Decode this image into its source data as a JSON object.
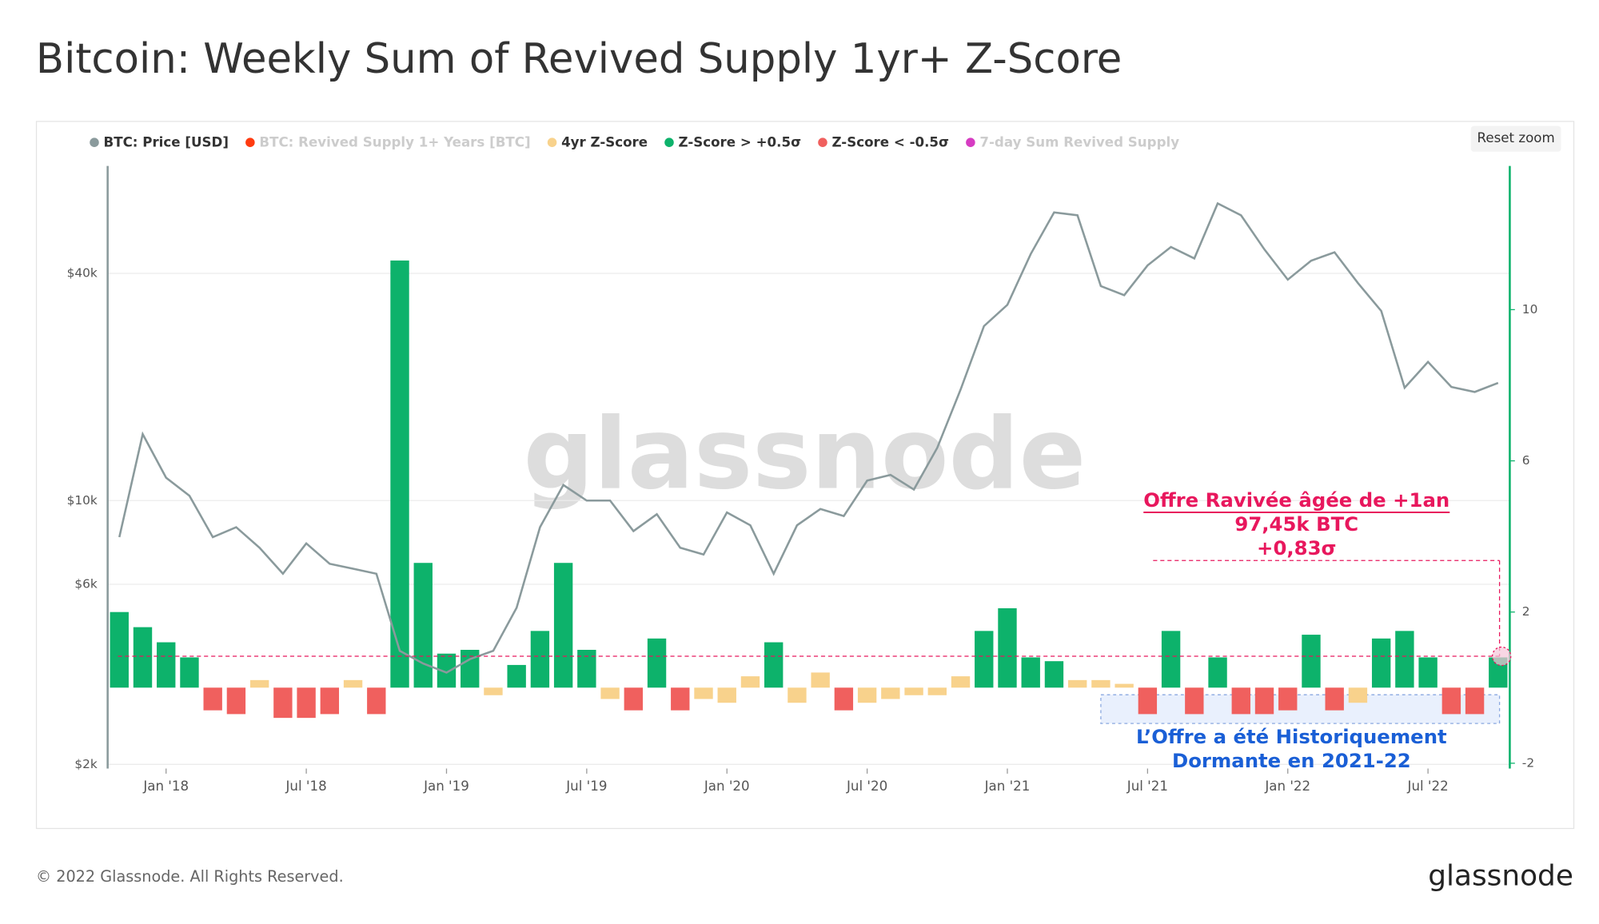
{
  "chart_data": {
    "type": "bar-line",
    "title": "Bitcoin: Weekly Sum of Revived Supply 1yr+ Z-Score",
    "watermark": "glassnode",
    "reset_button": "Reset zoom",
    "footer": "© 2022 Glassnode. All Rights Reserved.",
    "logo": "glassnode",
    "x": [
      "2017-11",
      "2017-12",
      "2018-01",
      "2018-02",
      "2018-03",
      "2018-04",
      "2018-05",
      "2018-06",
      "2018-07",
      "2018-08",
      "2018-09",
      "2018-10",
      "2018-11",
      "2018-12",
      "2019-01",
      "2019-02",
      "2019-03",
      "2019-04",
      "2019-05",
      "2019-06",
      "2019-07",
      "2019-08",
      "2019-09",
      "2019-10",
      "2019-11",
      "2019-12",
      "2020-01",
      "2020-02",
      "2020-03",
      "2020-04",
      "2020-05",
      "2020-06",
      "2020-07",
      "2020-08",
      "2020-09",
      "2020-10",
      "2020-11",
      "2020-12",
      "2021-01",
      "2021-02",
      "2021-03",
      "2021-04",
      "2021-05",
      "2021-06",
      "2021-07",
      "2021-08",
      "2021-09",
      "2021-10",
      "2021-11",
      "2021-12",
      "2022-01",
      "2022-02",
      "2022-03",
      "2022-04",
      "2022-05",
      "2022-06",
      "2022-07",
      "2022-08",
      "2022-09",
      "2022-10"
    ],
    "xticks": [
      {
        "value": "2018-01",
        "label": "Jan '18"
      },
      {
        "value": "2018-07",
        "label": "Jul '18"
      },
      {
        "value": "2019-01",
        "label": "Jan '19"
      },
      {
        "value": "2019-07",
        "label": "Jul '19"
      },
      {
        "value": "2020-01",
        "label": "Jan '20"
      },
      {
        "value": "2020-07",
        "label": "Jul '20"
      },
      {
        "value": "2021-01",
        "label": "Jan '21"
      },
      {
        "value": "2021-07",
        "label": "Jul '21"
      },
      {
        "value": "2022-01",
        "label": "Jan '22"
      },
      {
        "value": "2022-07",
        "label": "Jul '22"
      }
    ],
    "ylim": [
      1950,
      77000
    ],
    "log_scale": true,
    "yticks": [
      {
        "value": 2000,
        "label": "$2k"
      },
      {
        "value": 6000,
        "label": "$6k"
      },
      {
        "value": 10000,
        "label": "$10k"
      },
      {
        "value": 40000,
        "label": "$40k"
      }
    ],
    "y2lim": [
      -2.14,
      13.8
    ],
    "y2ticks": [
      -2,
      2,
      6,
      10
    ],
    "grid": true,
    "legend": "top-left",
    "series": [
      {
        "name": "BTC: Price [USD]",
        "color": "#8a9a9c",
        "type": "line",
        "axis": "y",
        "values": [
          8000,
          15000,
          11500,
          10300,
          8000,
          8500,
          7500,
          6400,
          7700,
          6800,
          6600,
          6400,
          4000,
          3700,
          3500,
          3800,
          4000,
          5200,
          8500,
          11000,
          10000,
          10000,
          8300,
          9200,
          7500,
          7200,
          9300,
          8600,
          6400,
          8600,
          9500,
          9100,
          11300,
          11700,
          10700,
          13800,
          19700,
          29000,
          33000,
          45000,
          58000,
          57000,
          37000,
          35000,
          42000,
          47000,
          43800,
          61300,
          57000,
          46300,
          38500,
          43200,
          45500,
          37700,
          31800,
          19900,
          23300,
          20000,
          19400,
          20500
        ]
      },
      {
        "name": "BTC: Revived Supply 1+ Years [BTC]",
        "color": "#ff3b10",
        "visible": false
      },
      {
        "name": "4yr Z-Score",
        "color": "#f8d28c",
        "type": "bar",
        "axis": "y2",
        "values": [
          null,
          null,
          null,
          null,
          null,
          null,
          0.2,
          null,
          null,
          null,
          0.2,
          null,
          null,
          null,
          null,
          null,
          -0.2,
          null,
          null,
          null,
          null,
          -0.3,
          null,
          null,
          null,
          -0.3,
          -0.4,
          0.3,
          null,
          -0.4,
          0.4,
          null,
          -0.4,
          -0.3,
          -0.2,
          -0.2,
          0.3,
          null,
          null,
          null,
          null,
          0.2,
          0.2,
          0.1,
          null,
          null,
          null,
          null,
          null,
          null,
          null,
          null,
          null,
          -0.4,
          null,
          null,
          null,
          null,
          null,
          null
        ]
      },
      {
        "name": "Z-Score > +0.5σ",
        "color": "#0db26b",
        "type": "bar",
        "axis": "y2",
        "values": [
          2.0,
          1.6,
          1.2,
          0.8,
          null,
          null,
          null,
          null,
          null,
          null,
          null,
          null,
          11.3,
          3.3,
          0.9,
          1.0,
          null,
          0.6,
          1.5,
          3.3,
          1.0,
          null,
          null,
          1.3,
          null,
          null,
          null,
          null,
          1.2,
          null,
          null,
          null,
          null,
          null,
          null,
          null,
          null,
          1.5,
          2.1,
          0.8,
          0.7,
          null,
          null,
          null,
          null,
          1.5,
          null,
          0.8,
          null,
          null,
          null,
          1.4,
          null,
          null,
          1.3,
          1.5,
          0.8,
          null,
          null,
          0.8
        ]
      },
      {
        "name": "Z-Score < -0.5σ",
        "color": "#f0605e",
        "type": "bar",
        "axis": "y2",
        "values": [
          null,
          null,
          null,
          null,
          -0.6,
          -0.7,
          null,
          -0.8,
          -0.8,
          -0.7,
          null,
          -0.7,
          null,
          null,
          null,
          null,
          null,
          null,
          null,
          null,
          null,
          null,
          -0.6,
          null,
          -0.6,
          null,
          null,
          null,
          null,
          null,
          null,
          -0.6,
          null,
          null,
          null,
          null,
          null,
          null,
          null,
          null,
          null,
          null,
          null,
          null,
          -0.7,
          null,
          -0.7,
          null,
          -0.7,
          -0.7,
          -0.6,
          null,
          -0.6,
          null,
          null,
          null,
          null,
          -0.7,
          -0.7,
          null
        ]
      },
      {
        "name": "7-day Sum Revived Supply",
        "color": "#d63cc2",
        "visible": false
      }
    ],
    "highlight": {
      "value": 0.83,
      "lines": [
        "Offre Ravivée âgée de +1an",
        "97,45k BTC",
        "+0,83σ"
      ],
      "color": "#e8175d"
    },
    "note": {
      "lines": [
        "L’Offre a été Historiquement",
        "Dormante en 2021-22"
      ],
      "color": "#1a5fd6"
    }
  }
}
